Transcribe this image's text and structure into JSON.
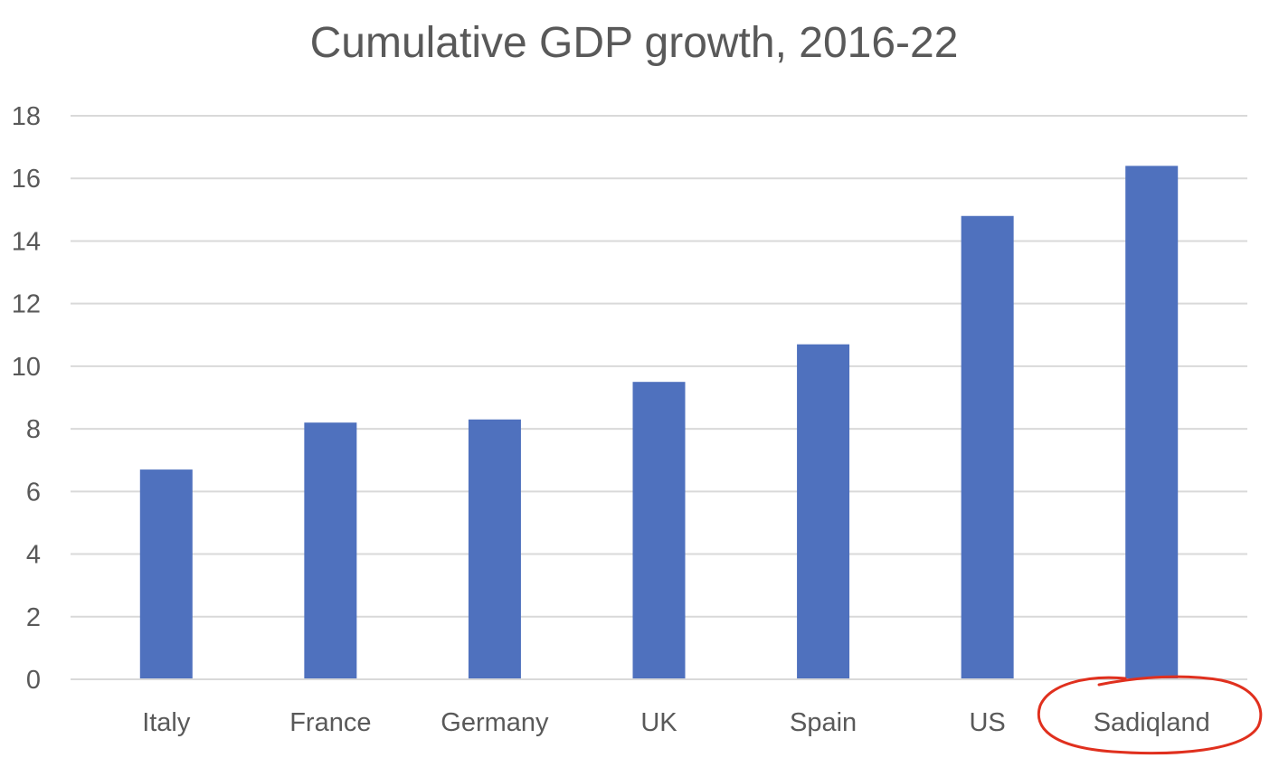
{
  "chart_data": {
    "type": "bar",
    "title": "Cumulative GDP growth, 2016-22",
    "xlabel": "",
    "ylabel": "",
    "categories": [
      "Italy",
      "France",
      "Germany",
      "UK",
      "Spain",
      "US",
      "Sadiqland"
    ],
    "values": [
      6.7,
      8.2,
      8.3,
      9.5,
      10.7,
      14.8,
      16.4
    ],
    "ylim": [
      0,
      18
    ],
    "yticks": [
      "0",
      "2",
      "4",
      "6",
      "8",
      "10",
      "12",
      "14",
      "16",
      "18"
    ],
    "grid": true,
    "legend": "none",
    "bar_color": "#4f71be",
    "highlighted_category": "Sadiqland",
    "annotation_color": "#e0301e"
  }
}
